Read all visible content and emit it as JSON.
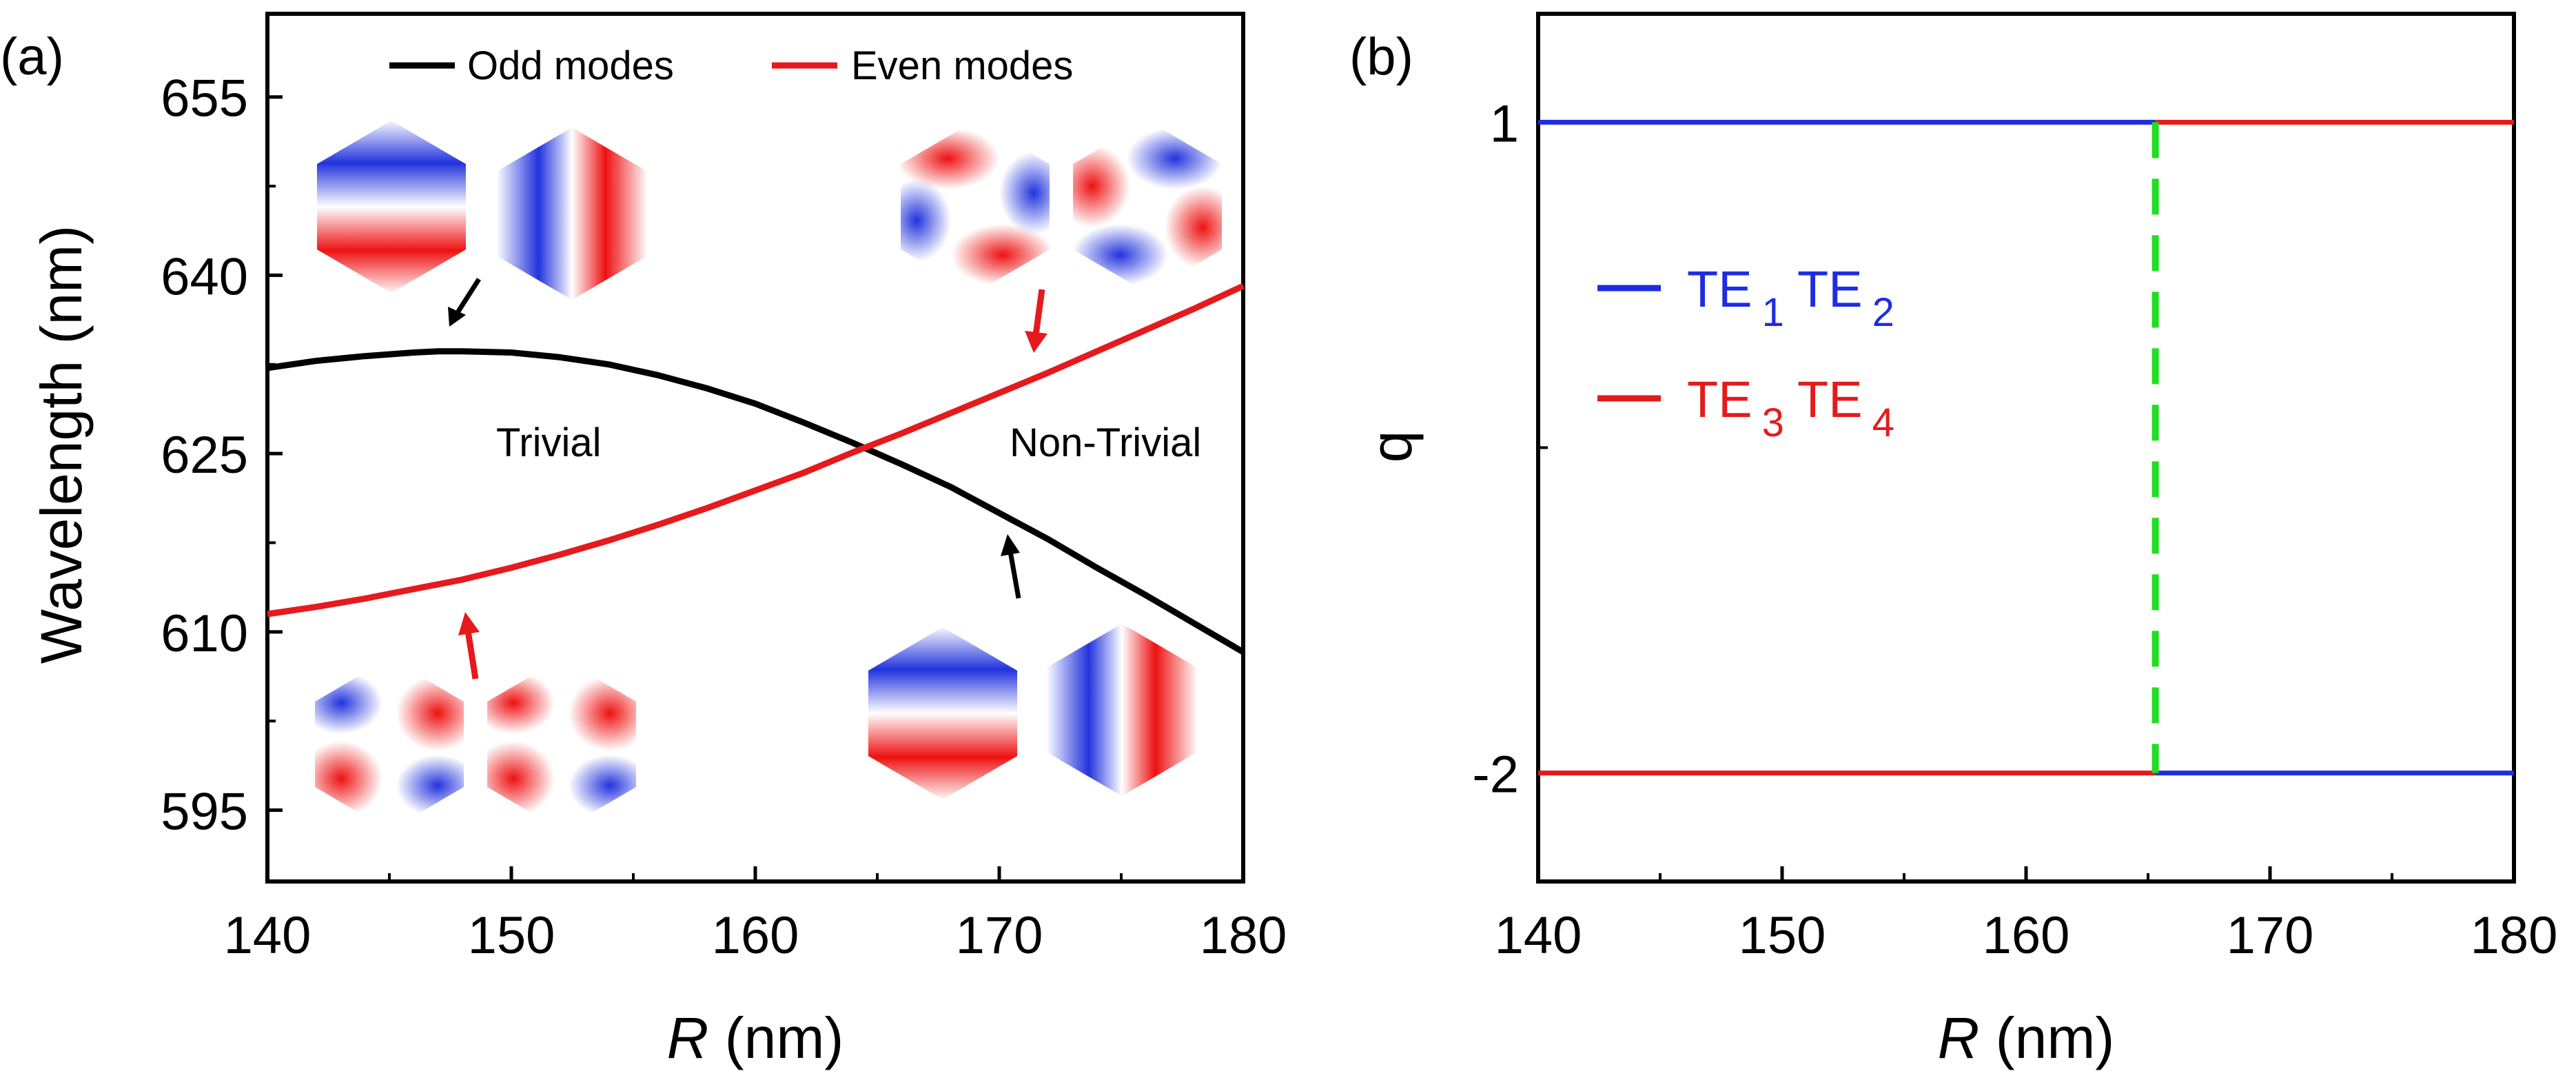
{
  "chart_data": [
    {
      "panel": "(a)",
      "type": "line",
      "xlabel_italic": "R",
      "xlabel_rest": " (nm)",
      "ylabel": "Wavelength (nm)",
      "xlim": [
        140,
        180
      ],
      "ylim": [
        589,
        662
      ],
      "xticks": [
        140,
        150,
        160,
        170,
        180
      ],
      "yticks": [
        595,
        610,
        625,
        640,
        655
      ],
      "series": [
        {
          "name": "Odd modes",
          "color": "#000000",
          "x": [
            140,
            142,
            144,
            146,
            147,
            148,
            150,
            152,
            154,
            156,
            158,
            160,
            162,
            164,
            165,
            166,
            168,
            170,
            172,
            174,
            176,
            178,
            180
          ],
          "y": [
            632.2,
            632.8,
            633.2,
            633.5,
            633.6,
            633.6,
            633.5,
            633.1,
            632.5,
            631.6,
            630.5,
            629.2,
            627.6,
            625.9,
            625.0,
            624.1,
            622.2,
            620.0,
            617.8,
            615.4,
            613.1,
            610.7,
            608.3
          ]
        },
        {
          "name": "Even modes",
          "color": "#e41a1c",
          "x": [
            140,
            142,
            144,
            146,
            148,
            150,
            152,
            154,
            156,
            158,
            160,
            162,
            164,
            165,
            166,
            168,
            170,
            172,
            174,
            176,
            178,
            180
          ],
          "y": [
            611.5,
            612.1,
            612.8,
            613.6,
            614.4,
            615.4,
            616.5,
            617.7,
            619.0,
            620.4,
            621.9,
            623.4,
            625.1,
            625.9,
            626.7,
            628.4,
            630.1,
            631.8,
            633.6,
            635.4,
            637.2,
            639.1
          ]
        }
      ],
      "legend": [
        "Odd modes",
        "Even modes"
      ],
      "annotations": [
        "Trivial",
        "Non-Trivial"
      ]
    },
    {
      "panel": "(b)",
      "type": "line",
      "xlabel_italic": "R",
      "xlabel_rest": " (nm)",
      "ylabel": "q",
      "xlim": [
        140,
        180
      ],
      "ylim": [
        -2.5,
        1.5
      ],
      "xticks": [
        140,
        150,
        160,
        170,
        180
      ],
      "yticks": [
        -2,
        1
      ],
      "ytick_labels": [
        "-2",
        "1"
      ],
      "transition_x": 165.3,
      "series": [
        {
          "name": "TE1 TE2",
          "color": "#1f2de0",
          "x": [
            140,
            165.3,
            165.3,
            180
          ],
          "y": [
            1,
            1,
            -2,
            -2
          ]
        },
        {
          "name": "TE3 TE4",
          "color": "#e41a1c",
          "x": [
            140,
            165.3,
            165.3,
            180
          ],
          "y": [
            -2,
            -2,
            1,
            1
          ]
        }
      ],
      "legend": [
        {
          "prefix1": "TE",
          "sub1": "1",
          "prefix2": " TE",
          "sub2": "2",
          "color": "#1f2de0"
        },
        {
          "prefix1": "TE",
          "sub1": "3",
          "prefix2": " TE",
          "sub2": "4",
          "color": "#e41a1c"
        }
      ]
    }
  ],
  "colors": {
    "odd": "#000000",
    "even": "#e41a1c",
    "blue": "#1f2de0",
    "transition": "#22dd22"
  }
}
